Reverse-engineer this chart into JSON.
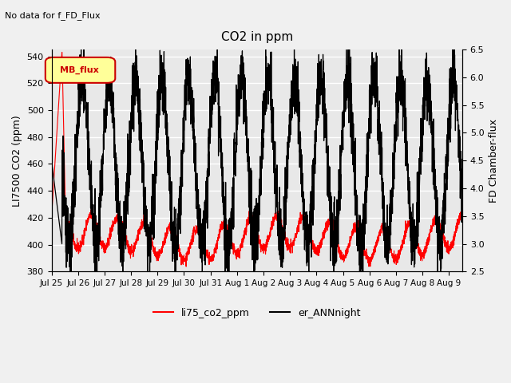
{
  "title": "CO2 in ppm",
  "top_label": "No data for f_FD_Flux",
  "ylabel_left": "LI7500 CO2 (ppm)",
  "ylabel_right": "FD Chamber-flux",
  "ylim_left": [
    380,
    545
  ],
  "ylim_right": [
    2.5,
    6.5
  ],
  "yticks_left": [
    380,
    400,
    420,
    440,
    460,
    480,
    500,
    520,
    540
  ],
  "yticks_right": [
    2.5,
    3.0,
    3.5,
    4.0,
    4.5,
    5.0,
    5.5,
    6.0,
    6.5
  ],
  "x_labels": [
    "Jul 25",
    "Jul 26",
    "Jul 27",
    "Jul 28",
    "Jul 29",
    "Jul 30",
    "Jul 31",
    "Aug 1",
    "Aug 2",
    "Aug 3",
    "Aug 4",
    "Aug 5",
    "Aug 6",
    "Aug 7",
    "Aug 8",
    "Aug 9"
  ],
  "n_points": 3360,
  "total_days": 15.5,
  "background_color": "#f0f0f0",
  "plot_bg_color": "#e8e8e8",
  "line1_color": "#ff0000",
  "line2_color": "#000000",
  "legend1": "li75_co2_ppm",
  "legend2": "er_ANNnight",
  "legend_box_color": "#ffff99",
  "legend_box_edge": "#cc0000",
  "mb_flux_label": "MB_flux",
  "grid_color": "#ffffff",
  "fig_width": 6.4,
  "fig_height": 4.8,
  "dpi": 100
}
